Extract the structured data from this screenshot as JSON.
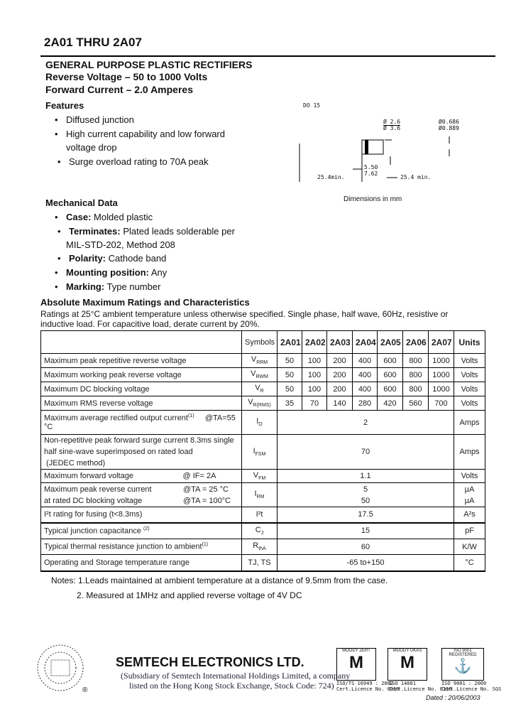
{
  "header": {
    "title": "2A01 THRU 2A07",
    "subtitle": "GENERAL PURPOSE PLASTIC RECTIFIERS",
    "reverse_voltage": "Reverse Voltage – 50 to 1000 Volts",
    "forward_current": "Forward Current – 2.0 Amperes"
  },
  "features": {
    "heading": "Features",
    "items": [
      "Diffused junction",
      "High current capability and low forward",
      "voltage drop",
      "Surge overload rating to 70A peak"
    ]
  },
  "diagram": {
    "package": "DO 15",
    "body_dia": "Ø 2.6",
    "body_dia2": "Ø 3.6",
    "lead_dia": "Ø0.686",
    "lead_dia2": "Ø0.889",
    "body_len": "5.50",
    "body_len2": "7.62",
    "lead_left": "25.4min.",
    "lead_right": "25.4 min.",
    "caption": "Dimensions in mm"
  },
  "mechanical": {
    "heading": "Mechanical Data",
    "items": [
      {
        "label": "Case:",
        "text": " Molded plastic"
      },
      {
        "label": "Terminates:",
        "text": " Plated leads solderable per"
      },
      {
        "label": "",
        "text": "MIL-STD-202, Method 208"
      },
      {
        "label": "Polarity:",
        "text": " Cathode band"
      },
      {
        "label": "Mounting position:",
        "text": " Any"
      },
      {
        "label": "Marking:",
        "text": " Type number"
      }
    ]
  },
  "ratings": {
    "heading": "Absolute Maximum Ratings and Characteristics",
    "intro1": "Ratings at 25°C ambient temperature unless otherwise specified.   Single phase, half wave, 60Hz, resistive or",
    "intro2": "inductive load. For capacitive load, derate current by 20%."
  },
  "table": {
    "headers": [
      "Symbols",
      "2A01",
      "2A02",
      "2A03",
      "2A04",
      "2A05",
      "2A06",
      "2A07",
      "Units"
    ],
    "rows7": [
      {
        "desc": "Maximum peak repetitive reverse voltage",
        "sym": "V",
        "sub": "RRM",
        "vals": [
          "50",
          "100",
          "200",
          "400",
          "600",
          "800",
          "1000"
        ],
        "unit": "Volts"
      },
      {
        "desc": "Maximum working peak reverse voltage",
        "sym": "V",
        "sub": "RWM",
        "vals": [
          "50",
          "100",
          "200",
          "400",
          "600",
          "800",
          "1000"
        ],
        "unit": "Volts"
      },
      {
        "desc": "Maximum DC blocking voltage",
        "sym": "V",
        "sub": "R",
        "vals": [
          "50",
          "100",
          "200",
          "400",
          "600",
          "800",
          "1000"
        ],
        "unit": "Volts"
      },
      {
        "desc": "Maximum RMS reverse voltage",
        "sym": "V",
        "sub": "R(RMS)",
        "vals": [
          "35",
          "70",
          "140",
          "280",
          "420",
          "560",
          "700"
        ],
        "unit": "Volts"
      }
    ],
    "io": {
      "desc": "Maximum average rectified output current",
      "note": "(1)",
      "cond": "@TA=55 °C",
      "sym": "I",
      "sub": "O",
      "val": "2",
      "unit": "Amps"
    },
    "ifsm": {
      "desc1": "Non-repetitive peak forward surge current 8.3ms single",
      "desc2": "half sine-wave superimposed on rated load",
      "desc3": "(JEDEC method)",
      "sym": "I",
      "sub": "FSM",
      "val": "70",
      "unit": "Amps"
    },
    "vfm": {
      "desc": "Maximum forward voltage",
      "cond": "@   IF= 2A",
      "sym": "V",
      "sub": "FM",
      "val": "1.1",
      "unit": "Volts"
    },
    "irm": {
      "desc1": "Maximum peak reverse current",
      "cond1": "@TA = 25 °C",
      "desc2": "at rated DC blocking voltage",
      "cond2": "@TA = 100°C",
      "sym": "I",
      "sub": "RM",
      "val1": "5",
      "val2": "50",
      "unit1": "µA",
      "unit2": "µA"
    },
    "i2t": {
      "desc": "I²t rating for fusing (t<8.3ms)",
      "sym": "I²t",
      "val": "17.5",
      "unit": "A²s"
    },
    "cj": {
      "desc": "Typical junction capacitance",
      "note": "(2)",
      "sym": "C",
      "sub": "J",
      "val": "15",
      "unit": "pF"
    },
    "rth": {
      "desc": "Typical thermal resistance junction to ambient",
      "note": "(1)",
      "sym": "R",
      "sub": "thA",
      "val": "60",
      "unit": "K/W"
    },
    "temp": {
      "desc": "Operating and Storage temperature range",
      "sym": "TJ, TS",
      "val": "-65 to+150",
      "unit": "°C"
    }
  },
  "notes": {
    "n1": "Notes: 1.Leads maintained at ambient temperature at a distance of 9.5mm from the case.",
    "n2": "2. Measured at 1MHz and applied reverse voltage of 4V DC"
  },
  "footer": {
    "company": "SEMTECH ELECTRONICS LTD.",
    "sub1": "(Subsidiary of Semtech International Holdings Limited, a company",
    "sub2": "listed on the Hong Kong Stock Exchange, Stock Code: 724)",
    "registered": "®",
    "certs": [
      {
        "logo": "MOODY ZERT",
        "cap1": "ISO/TS 16949 : 2002",
        "cap2": "Cert.Licence No. 0010"
      },
      {
        "logo": "MOODY UKAS",
        "cap1": "ISO 14001",
        "cap2": "Cert.Licence No. 0116"
      },
      {
        "logo": "ISO 9001 REGISTERED",
        "cap1": "ISO 9001 : 2000",
        "cap2": "Cert.Licence No. SGS"
      }
    ],
    "dated": "Dated : 20/06/2003"
  }
}
